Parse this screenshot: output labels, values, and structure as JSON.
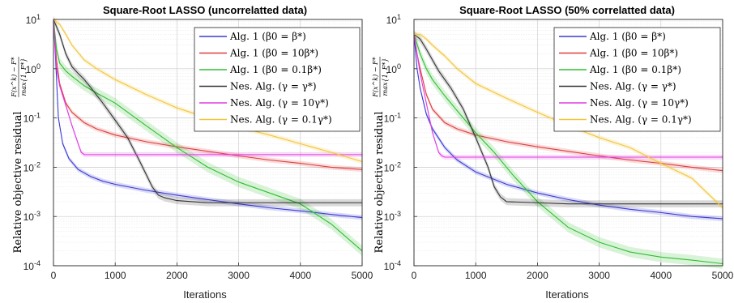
{
  "chart_data": [
    {
      "type": "line",
      "title": "Square-Root LASSO (uncorrelatted data)",
      "xlabel": "Iterations",
      "ylabel": "Relative objective residual",
      "ylabel_fraction": {
        "numerator": "F(x^k) − F*",
        "denominator": "max{1, F*}"
      },
      "xlim": [
        0,
        5000
      ],
      "ylim": [
        0.0001,
        10
      ],
      "yscale": "log",
      "xticks": [
        "0",
        "1000",
        "2000",
        "3000",
        "4000",
        "5000"
      ],
      "yticks": [
        "10^1",
        "10^0",
        "10^-1",
        "10^-2",
        "10^-3",
        "10^-4"
      ],
      "grid": true,
      "legend_position": "top-right",
      "series": [
        {
          "name": "Alg. 1 (β0 = β*)",
          "color": "#3a3ad6",
          "x": [
            0,
            30,
            80,
            150,
            250,
            400,
            600,
            800,
            1000,
            1500,
            2000,
            2500,
            3000,
            3500,
            4000,
            4500,
            5000
          ],
          "y": [
            10,
            2,
            0.1,
            0.03,
            0.015,
            0.009,
            0.0065,
            0.0052,
            0.0045,
            0.0034,
            0.0027,
            0.0022,
            0.0018,
            0.0015,
            0.0013,
            0.0011,
            0.00095
          ]
        },
        {
          "name": "Alg. 1 (β0 = 10β*)",
          "color": "#e03c3c",
          "x": [
            0,
            50,
            100,
            200,
            300,
            500,
            700,
            1000,
            1500,
            2000,
            2500,
            3000,
            3500,
            4000,
            4500,
            5000
          ],
          "y": [
            10,
            1.5,
            0.5,
            0.2,
            0.13,
            0.08,
            0.06,
            0.045,
            0.033,
            0.026,
            0.021,
            0.017,
            0.014,
            0.012,
            0.01,
            0.009
          ]
        },
        {
          "name": "Alg. 1 (β0 = 0.1β*)",
          "color": "#2fbf2f",
          "x": [
            0,
            50,
            100,
            200,
            300,
            500,
            700,
            1000,
            1500,
            2000,
            2500,
            3000,
            3500,
            4000,
            4500,
            5000
          ],
          "y": [
            10,
            2.5,
            1.3,
            0.9,
            0.7,
            0.45,
            0.32,
            0.2,
            0.07,
            0.025,
            0.01,
            0.005,
            0.003,
            0.0018,
            0.0007,
            0.0002
          ]
        },
        {
          "name": "Nes. Alg. (γ = γ*)",
          "color": "#333333",
          "x": [
            0,
            100,
            200,
            300,
            400,
            500,
            600,
            800,
            1000,
            1200,
            1400,
            1600,
            1700,
            1800,
            2000,
            2500,
            3000,
            3500,
            4000,
            4500,
            5000
          ],
          "y": [
            10,
            5,
            2,
            1.1,
            0.8,
            0.6,
            0.42,
            0.2,
            0.09,
            0.04,
            0.013,
            0.004,
            0.0027,
            0.0024,
            0.0021,
            0.0019,
            0.0019,
            0.0019,
            0.0019,
            0.0019,
            0.0019
          ]
        },
        {
          "name": "Nes. Alg. (γ = 10γ*)",
          "color": "#e03ce0",
          "x": [
            0,
            50,
            100,
            200,
            300,
            400,
            450,
            500,
            600,
            800,
            1000,
            2000,
            3000,
            4000,
            5000
          ],
          "y": [
            10,
            1,
            0.45,
            0.18,
            0.07,
            0.03,
            0.02,
            0.018,
            0.018,
            0.018,
            0.018,
            0.018,
            0.018,
            0.018,
            0.018
          ]
        },
        {
          "name": "Nes. Alg. (γ = 0.1γ*)",
          "color": "#f2c53a",
          "x": [
            0,
            100,
            200,
            300,
            500,
            700,
            1000,
            1500,
            2000,
            2500,
            3000,
            3500,
            4000,
            4500,
            5000
          ],
          "y": [
            10,
            8,
            5,
            3,
            1.5,
            1,
            0.6,
            0.3,
            0.16,
            0.1,
            0.065,
            0.045,
            0.03,
            0.02,
            0.013
          ]
        }
      ]
    },
    {
      "type": "line",
      "title": "Square-Root LASSO (50% correlatted data)",
      "xlabel": "Iterations",
      "ylabel": "Relative objective residual",
      "ylabel_fraction": {
        "numerator": "F(x^k) − F*",
        "denominator": "max{1, F*}"
      },
      "xlim": [
        0,
        5000
      ],
      "ylim": [
        0.0001,
        10
      ],
      "yscale": "log",
      "xticks": [
        "0",
        "1000",
        "2000",
        "3000",
        "4000",
        "5000"
      ],
      "yticks": [
        "10^1",
        "10^0",
        "10^-1",
        "10^-2",
        "10^-3",
        "10^-4"
      ],
      "grid": true,
      "legend_position": "top-right",
      "series": [
        {
          "name": "Alg. 1 (β0 = β*)",
          "color": "#3a3ad6",
          "x": [
            0,
            50,
            100,
            200,
            300,
            500,
            700,
            1000,
            1500,
            2000,
            2500,
            3000,
            3500,
            4000,
            4500,
            5000
          ],
          "y": [
            5,
            1,
            0.4,
            0.12,
            0.06,
            0.025,
            0.014,
            0.008,
            0.0045,
            0.003,
            0.0022,
            0.0017,
            0.0014,
            0.0012,
            0.001,
            0.0009
          ]
        },
        {
          "name": "Alg. 1 (β0 = 10β*)",
          "color": "#e03c3c",
          "x": [
            0,
            50,
            100,
            200,
            300,
            500,
            700,
            1000,
            1500,
            2000,
            2500,
            3000,
            3500,
            4000,
            4500,
            5000
          ],
          "y": [
            5,
            2,
            1,
            0.3,
            0.15,
            0.08,
            0.06,
            0.045,
            0.033,
            0.026,
            0.021,
            0.017,
            0.014,
            0.012,
            0.01,
            0.0085
          ]
        },
        {
          "name": "Alg. 1 (β0 = 0.1β*)",
          "color": "#2fbf2f",
          "x": [
            0,
            100,
            200,
            300,
            500,
            700,
            1000,
            1300,
            1600,
            2000,
            2500,
            3000,
            3500,
            4000,
            4500,
            5000
          ],
          "y": [
            5,
            2,
            1,
            0.6,
            0.28,
            0.14,
            0.05,
            0.02,
            0.007,
            0.002,
            0.0006,
            0.0003,
            0.00019,
            0.00015,
            0.00013,
            0.00011
          ]
        },
        {
          "name": "Nes. Alg. (γ = γ*)",
          "color": "#333333",
          "x": [
            0,
            100,
            200,
            300,
            400,
            500,
            600,
            800,
            1000,
            1200,
            1300,
            1400,
            1500,
            2000,
            2500,
            3000,
            3500,
            4000,
            4500,
            5000
          ],
          "y": [
            5,
            4,
            2.5,
            1.5,
            0.9,
            0.6,
            0.4,
            0.15,
            0.04,
            0.01,
            0.004,
            0.0025,
            0.002,
            0.0019,
            0.0018,
            0.0018,
            0.0018,
            0.0018,
            0.0018,
            0.0018
          ]
        },
        {
          "name": "Nes. Alg. (γ = 10γ*)",
          "color": "#e03ce0",
          "x": [
            0,
            50,
            100,
            200,
            300,
            400,
            450,
            500,
            1000,
            2000,
            3000,
            4000,
            5000
          ],
          "y": [
            5,
            2,
            0.8,
            0.2,
            0.05,
            0.02,
            0.017,
            0.016,
            0.016,
            0.016,
            0.016,
            0.016,
            0.016
          ]
        },
        {
          "name": "Nes. Alg. (γ = 0.1γ*)",
          "color": "#f2c53a",
          "x": [
            0,
            100,
            200,
            300,
            500,
            700,
            1000,
            1500,
            2000,
            2500,
            3000,
            3500,
            4000,
            4500,
            5000
          ],
          "y": [
            5,
            5,
            4,
            3,
            1.8,
            1,
            0.5,
            0.25,
            0.13,
            0.07,
            0.04,
            0.025,
            0.012,
            0.006,
            0.0015
          ]
        }
      ]
    }
  ]
}
